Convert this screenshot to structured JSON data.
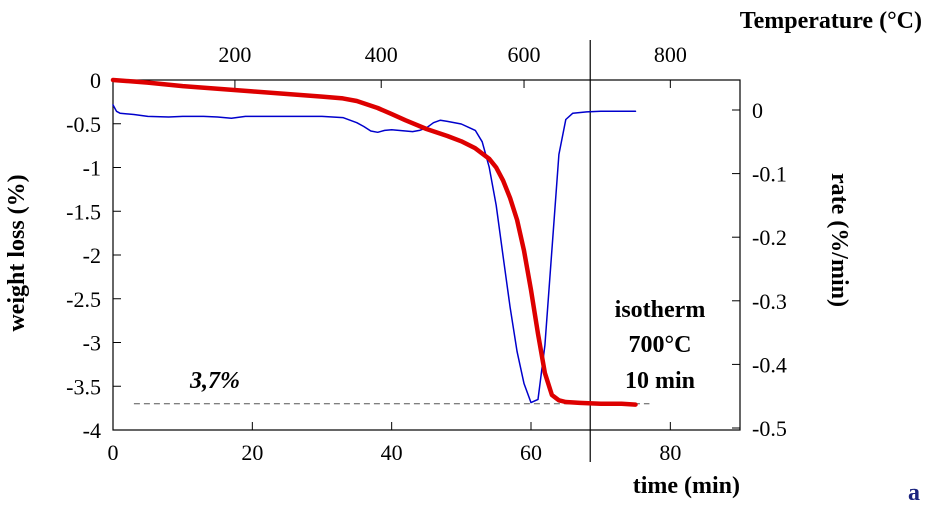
{
  "chart_data": {
    "type": "line",
    "title": "",
    "panel_label": "a",
    "x_axis": {
      "label": "time (min)",
      "range": [
        0,
        90
      ],
      "ticks": [
        0,
        20,
        40,
        60,
        80
      ]
    },
    "x_top_axis": {
      "label": "Temperature (°C)",
      "ticks": [
        {
          "label": "200",
          "time": 17.5
        },
        {
          "label": "400",
          "time": 38.5
        },
        {
          "label": "600",
          "time": 59.0
        },
        {
          "label": "800",
          "time": 80.0
        }
      ]
    },
    "y_left_axis": {
      "label": "weight loss (%)",
      "range": [
        -4,
        0
      ],
      "ticks": [
        0,
        -0.5,
        -1,
        -1.5,
        -2,
        -2.5,
        -3,
        -3.5,
        -4
      ],
      "tick_labels": [
        "0",
        "-0.5",
        "-1",
        "-1.5",
        "-2",
        "-2.5",
        "-3",
        "-3.5",
        "-4"
      ]
    },
    "y_right_axis": {
      "label": "rate (%/min)",
      "range": [
        -0.5,
        0.03
      ],
      "ticks": [
        0,
        -0.1,
        -0.2,
        -0.3,
        -0.4,
        -0.5
      ],
      "tick_labels": [
        "0",
        "-0.1",
        "-0.2",
        "-0.3",
        "-0.4",
        "-0.5"
      ]
    },
    "series": [
      {
        "axis": "left",
        "color": "#dd0000",
        "x": [
          0,
          5,
          10,
          15,
          20,
          25,
          30,
          33,
          35,
          38,
          40,
          42,
          45,
          48,
          50,
          52,
          54,
          55,
          56,
          57,
          58,
          59,
          60,
          61,
          62,
          63,
          64,
          65,
          67,
          70,
          73,
          75
        ],
        "y": [
          0,
          -0.03,
          -0.07,
          -0.1,
          -0.13,
          -0.16,
          -0.19,
          -0.21,
          -0.24,
          -0.32,
          -0.39,
          -0.46,
          -0.56,
          -0.64,
          -0.7,
          -0.78,
          -0.9,
          -1.0,
          -1.15,
          -1.35,
          -1.6,
          -1.95,
          -2.4,
          -2.9,
          -3.35,
          -3.6,
          -3.66,
          -3.68,
          -3.69,
          -3.7,
          -3.7,
          -3.71
        ]
      },
      {
        "axis": "right",
        "color": "#0000cc",
        "x": [
          0,
          0.5,
          1,
          3,
          5,
          8,
          10,
          13,
          15,
          17,
          19,
          22,
          25,
          30,
          33,
          35,
          36,
          37,
          38,
          39,
          40,
          42,
          43,
          44,
          45,
          46,
          47,
          48,
          50,
          52,
          53,
          54,
          55,
          56,
          57,
          58,
          59,
          60,
          61,
          62,
          63,
          64,
          65,
          66,
          68,
          70,
          75
        ],
        "y": [
          0.008,
          -0.002,
          -0.005,
          -0.007,
          -0.01,
          -0.011,
          -0.01,
          -0.01,
          -0.011,
          -0.013,
          -0.01,
          -0.01,
          -0.01,
          -0.01,
          -0.012,
          -0.02,
          -0.026,
          -0.033,
          -0.035,
          -0.032,
          -0.031,
          -0.033,
          -0.034,
          -0.032,
          -0.028,
          -0.02,
          -0.016,
          -0.018,
          -0.022,
          -0.032,
          -0.05,
          -0.09,
          -0.15,
          -0.23,
          -0.31,
          -0.38,
          -0.43,
          -0.46,
          -0.455,
          -0.37,
          -0.22,
          -0.07,
          -0.015,
          -0.005,
          -0.003,
          -0.002,
          -0.002
        ]
      }
    ],
    "annotations": [
      {
        "text": "3,7%",
        "type": "reference-line",
        "value": -3.7,
        "axis": "left",
        "style": "bold italic"
      },
      {
        "text": "isotherm",
        "type": "label"
      },
      {
        "text": "700°C",
        "type": "label"
      },
      {
        "text": "10 min",
        "type": "label"
      }
    ],
    "vertical_line": {
      "time": 68.5
    }
  }
}
